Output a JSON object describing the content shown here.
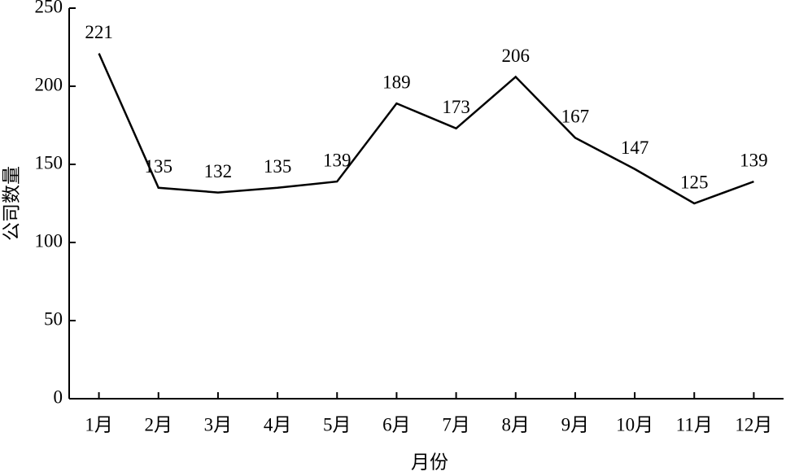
{
  "chart_data": {
    "type": "line",
    "x_label": "月份",
    "y_label": "公司数量",
    "categories": [
      "1月",
      "2月",
      "3月",
      "4月",
      "5月",
      "6月",
      "7月",
      "8月",
      "9月",
      "10月",
      "11月",
      "12月"
    ],
    "values": [
      221,
      135,
      132,
      135,
      139,
      189,
      173,
      206,
      167,
      147,
      125,
      139
    ],
    "color": "#000000",
    "ylim": [
      0,
      250
    ],
    "yticks": [
      0,
      50,
      100,
      150,
      200,
      250
    ],
    "grid": false,
    "data_labels": true
  }
}
